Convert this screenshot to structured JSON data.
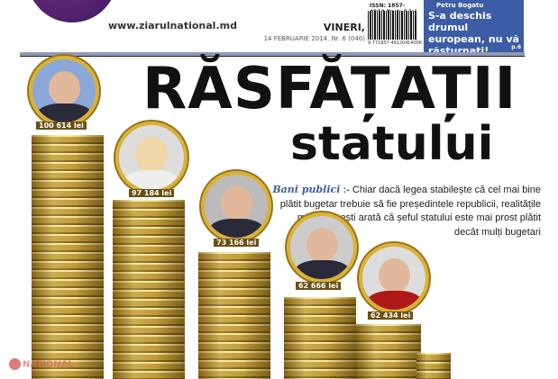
{
  "masthead": {
    "website": "www.ziarulnational.md",
    "day": "VINERI,",
    "date_issue": "14 FEBRUARIE 2014. Nr. 6 (040)",
    "issn_price": "ISSN: 1857-4912 Preț: 5 lei",
    "barcode_number": "9 771857 491204",
    "barcode_suffix": "14006"
  },
  "teaser": {
    "author": "Petru Bogatu",
    "headline": "S-a deschis drumul european, nu vă răsturnați!",
    "page": "p.6",
    "color": "#3d5ca6"
  },
  "headline": {
    "line1": "RĂSFĂȚAȚII",
    "line2": "statului"
  },
  "lead": {
    "rubric": "Bani publici",
    "separator": ":-",
    "text": "Chiar dacă legea stabilește că cel mai bine plătit bugetar trebuie să fie președintele republicii, realitățile moldovenești arată că șeful statului este mai prost plătit decât mulți bugetari"
  },
  "salaries": [
    {
      "label": "100 614 lei"
    },
    {
      "label": "97 184 lei"
    },
    {
      "label": "73 166 lei"
    },
    {
      "label": "62 666 lei"
    },
    {
      "label": "62 434 lei"
    }
  ],
  "watermark": "NATIONAL"
}
